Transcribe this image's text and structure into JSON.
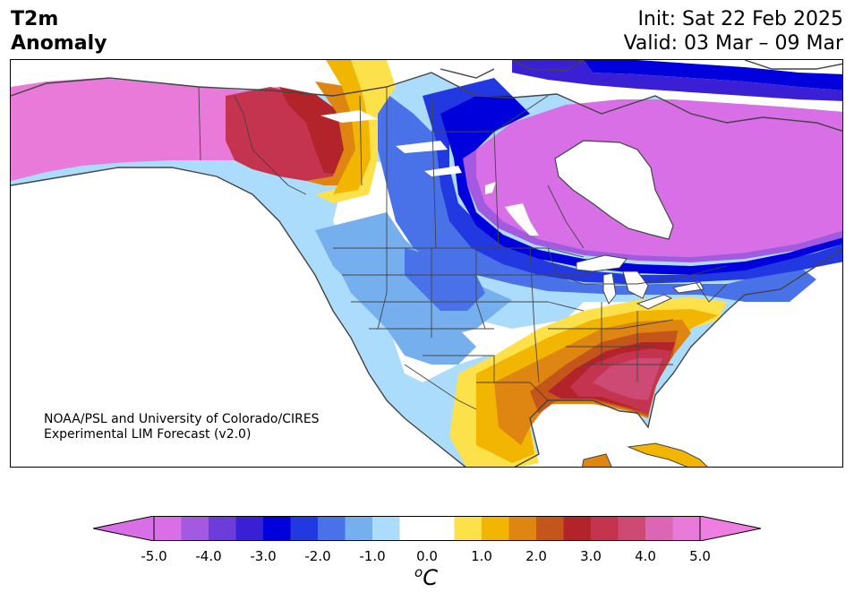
{
  "title": {
    "line1": "T2m",
    "line2": "Anomaly",
    "init": "Init: Sat 22 Feb 2025",
    "valid": "Valid: 03 Mar – 09 Mar"
  },
  "credit": {
    "line1": "NOAA/PSL and University of Colorado/CIRES",
    "line2": "Experimental LIM Forecast (v2.0)"
  },
  "colorbar": {
    "unit_sup": "o",
    "unit_main": "C",
    "ticks": [
      "-5.0",
      "-4.0",
      "-3.0",
      "-2.0",
      "-1.0",
      "0.0",
      "1.0",
      "2.0",
      "3.0",
      "4.0",
      "5.0"
    ],
    "min": -5.0,
    "max": 5.0,
    "colors": [
      "#d86fe6",
      "#a35ae0",
      "#6d3ddb",
      "#3a1fd4",
      "#0000dc",
      "#2238e0",
      "#4a72e8",
      "#76afee",
      "#acdcfb",
      "#ffffff",
      "#ffffff",
      "#fde14a",
      "#f2b502",
      "#df8512",
      "#c5561b",
      "#b2242a",
      "#c4344e",
      "#cd4a74",
      "#dc66b4",
      "#e97ad9"
    ],
    "under_color": "#d86fe6",
    "over_color": "#ef7ee2"
  }
}
